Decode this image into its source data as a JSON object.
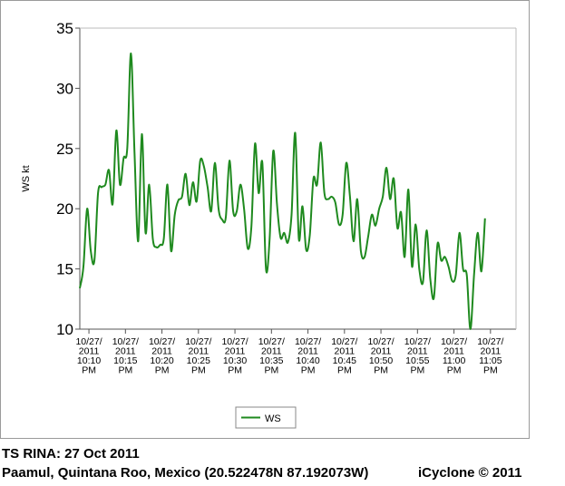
{
  "chart_data": {
    "type": "line",
    "ylabel": "WS kt",
    "xlabel": "",
    "ylim": [
      10,
      35
    ],
    "yticks": [
      10,
      15,
      20,
      25,
      30,
      35
    ],
    "grid": false,
    "legend_position": "bottom-center",
    "x_tick_labels": [
      [
        "10/27/",
        "2011",
        "10:10",
        "PM"
      ],
      [
        "10/27/",
        "2011",
        "10:15",
        "PM"
      ],
      [
        "10/27/",
        "2011",
        "10:20",
        "PM"
      ],
      [
        "10/27/",
        "2011",
        "10:25",
        "PM"
      ],
      [
        "10/27/",
        "2011",
        "10:30",
        "PM"
      ],
      [
        "10/27/",
        "2011",
        "10:35",
        "PM"
      ],
      [
        "10/27/",
        "2011",
        "10:40",
        "PM"
      ],
      [
        "10/27/",
        "2011",
        "10:45",
        "PM"
      ],
      [
        "10/27/",
        "2011",
        "10:50",
        "PM"
      ],
      [
        "10/27/",
        "2011",
        "10:55",
        "PM"
      ],
      [
        "10/27/",
        "2011",
        "11:00",
        "PM"
      ],
      [
        "10/27/",
        "2011",
        "11:05",
        "PM"
      ]
    ],
    "xlim": [
      "10/27/2011 22:08:45",
      "10/27/2011 23:08:30"
    ],
    "series": [
      {
        "name": "WS",
        "color": "#1f8a1f",
        "points": [
          [
            "10/27/2011 22:08:45",
            13.4
          ],
          [
            "10/27/2011 22:09:15",
            15.2
          ],
          [
            "10/27/2011 22:09:45",
            20.0
          ],
          [
            "10/27/2011 22:10:15",
            16.5
          ],
          [
            "10/27/2011 22:10:45",
            15.7
          ],
          [
            "10/27/2011 22:11:15",
            21.3
          ],
          [
            "10/27/2011 22:11:45",
            21.8
          ],
          [
            "10/27/2011 22:12:15",
            22.0
          ],
          [
            "10/27/2011 22:12:45",
            23.2
          ],
          [
            "10/27/2011 22:13:15",
            20.4
          ],
          [
            "10/27/2011 22:13:45",
            26.5
          ],
          [
            "10/27/2011 22:14:15",
            22.0
          ],
          [
            "10/27/2011 22:14:45",
            24.2
          ],
          [
            "10/27/2011 22:15:15",
            25.0
          ],
          [
            "10/27/2011 22:15:45",
            32.9
          ],
          [
            "10/27/2011 22:16:15",
            24.5
          ],
          [
            "10/27/2011 22:16:45",
            17.3
          ],
          [
            "10/27/2011 22:17:15",
            26.2
          ],
          [
            "10/27/2011 22:17:45",
            18.0
          ],
          [
            "10/27/2011 22:18:15",
            22.0
          ],
          [
            "10/27/2011 22:18:45",
            17.5
          ],
          [
            "10/27/2011 22:19:15",
            16.8
          ],
          [
            "10/27/2011 22:19:45",
            17.0
          ],
          [
            "10/27/2011 22:20:15",
            17.5
          ],
          [
            "10/27/2011 22:20:45",
            22.0
          ],
          [
            "10/27/2011 22:21:15",
            16.5
          ],
          [
            "10/27/2011 22:21:45",
            19.5
          ],
          [
            "10/27/2011 22:22:15",
            20.7
          ],
          [
            "10/27/2011 22:22:45",
            21.0
          ],
          [
            "10/27/2011 22:23:15",
            22.9
          ],
          [
            "10/27/2011 22:23:45",
            20.3
          ],
          [
            "10/27/2011 22:24:15",
            22.2
          ],
          [
            "10/27/2011 22:24:45",
            20.6
          ],
          [
            "10/27/2011 22:25:15",
            24.0
          ],
          [
            "10/27/2011 22:25:45",
            23.5
          ],
          [
            "10/27/2011 22:26:15",
            21.8
          ],
          [
            "10/27/2011 22:26:45",
            19.8
          ],
          [
            "10/27/2011 22:27:15",
            23.8
          ],
          [
            "10/27/2011 22:27:45",
            20.0
          ],
          [
            "10/27/2011 22:28:15",
            19.1
          ],
          [
            "10/27/2011 22:28:45",
            19.3
          ],
          [
            "10/27/2011 22:29:15",
            24.0
          ],
          [
            "10/27/2011 22:29:45",
            19.8
          ],
          [
            "10/27/2011 22:30:15",
            19.8
          ],
          [
            "10/27/2011 22:30:45",
            22.0
          ],
          [
            "10/27/2011 22:31:15",
            20.0
          ],
          [
            "10/27/2011 22:31:45",
            16.7
          ],
          [
            "10/27/2011 22:32:15",
            18.5
          ],
          [
            "10/27/2011 22:32:45",
            25.4
          ],
          [
            "10/27/2011 22:33:15",
            21.3
          ],
          [
            "10/27/2011 22:33:45",
            23.8
          ],
          [
            "10/27/2011 22:34:15",
            15.0
          ],
          [
            "10/27/2011 22:34:45",
            17.5
          ],
          [
            "10/27/2011 22:35:15",
            24.8
          ],
          [
            "10/27/2011 22:35:45",
            20.4
          ],
          [
            "10/27/2011 22:36:15",
            17.6
          ],
          [
            "10/27/2011 22:36:45",
            18.0
          ],
          [
            "10/27/2011 22:37:15",
            17.2
          ],
          [
            "10/27/2011 22:37:45",
            19.5
          ],
          [
            "10/27/2011 22:38:15",
            26.3
          ],
          [
            "10/27/2011 22:38:45",
            17.5
          ],
          [
            "10/27/2011 22:39:15",
            20.2
          ],
          [
            "10/27/2011 22:39:45",
            16.6
          ],
          [
            "10/27/2011 22:40:15",
            17.8
          ],
          [
            "10/27/2011 22:40:45",
            22.5
          ],
          [
            "10/27/2011 22:41:15",
            22.0
          ],
          [
            "10/27/2011 22:41:45",
            25.5
          ],
          [
            "10/27/2011 22:42:15",
            21.3
          ],
          [
            "10/27/2011 22:42:45",
            20.8
          ],
          [
            "10/27/2011 22:43:15",
            21.0
          ],
          [
            "10/27/2011 22:43:45",
            20.5
          ],
          [
            "10/27/2011 22:44:15",
            18.7
          ],
          [
            "10/27/2011 22:44:45",
            19.5
          ],
          [
            "10/27/2011 22:45:15",
            23.8
          ],
          [
            "10/27/2011 22:45:45",
            21.0
          ],
          [
            "10/27/2011 22:46:15",
            17.3
          ],
          [
            "10/27/2011 22:46:45",
            20.8
          ],
          [
            "10/27/2011 22:47:15",
            16.5
          ],
          [
            "10/27/2011 22:47:45",
            16.0
          ],
          [
            "10/27/2011 22:48:15",
            17.7
          ],
          [
            "10/27/2011 22:48:45",
            19.5
          ],
          [
            "10/27/2011 22:49:15",
            18.6
          ],
          [
            "10/27/2011 22:49:45",
            20.0
          ],
          [
            "10/27/2011 22:50:15",
            21.0
          ],
          [
            "10/27/2011 22:50:45",
            23.4
          ],
          [
            "10/27/2011 22:51:15",
            20.8
          ],
          [
            "10/27/2011 22:51:45",
            22.5
          ],
          [
            "10/27/2011 22:52:15",
            18.4
          ],
          [
            "10/27/2011 22:52:45",
            19.7
          ],
          [
            "10/27/2011 22:53:15",
            16.0
          ],
          [
            "10/27/2011 22:53:45",
            21.6
          ],
          [
            "10/27/2011 22:54:15",
            15.2
          ],
          [
            "10/27/2011 22:54:45",
            18.7
          ],
          [
            "10/27/2011 22:55:15",
            15.0
          ],
          [
            "10/27/2011 22:55:45",
            13.9
          ],
          [
            "10/27/2011 22:56:15",
            18.2
          ],
          [
            "10/27/2011 22:56:45",
            14.2
          ],
          [
            "10/27/2011 22:57:15",
            12.6
          ],
          [
            "10/27/2011 22:57:45",
            17.1
          ],
          [
            "10/27/2011 22:58:15",
            15.7
          ],
          [
            "10/27/2011 22:58:45",
            16.0
          ],
          [
            "10/27/2011 22:59:15",
            15.2
          ],
          [
            "10/27/2011 22:59:45",
            14.0
          ],
          [
            "10/27/2011 23:00:15",
            14.5
          ],
          [
            "10/27/2011 23:00:45",
            18.0
          ],
          [
            "10/27/2011 23:01:15",
            15.0
          ],
          [
            "10/27/2011 23:01:45",
            14.5
          ],
          [
            "10/27/2011 23:02:15",
            10.0
          ],
          [
            "10/27/2011 23:02:45",
            14.5
          ],
          [
            "10/27/2011 23:03:15",
            18.0
          ],
          [
            "10/27/2011 23:03:45",
            14.8
          ],
          [
            "10/27/2011 23:04:15",
            19.2
          ]
        ]
      }
    ]
  },
  "captions": {
    "line1": "TS RINA: 27 Oct 2011",
    "line2": "Paamul, Quintana Roo, Mexico (20.522478N 87.192073W)",
    "credit": "iCyclone © 2011"
  }
}
